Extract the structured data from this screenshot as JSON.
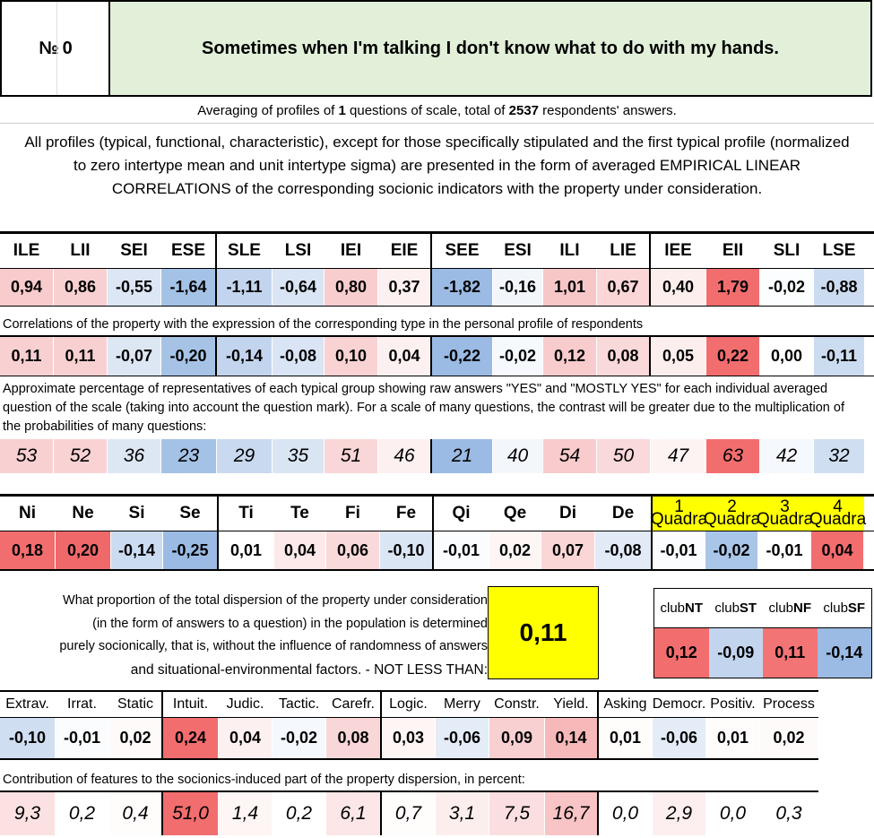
{
  "header": {
    "num_label": "№",
    "num_value": "0",
    "title": "Sometimes when I'm talking I don't know what to do with my hands."
  },
  "averaging": {
    "prefix": "Averaging of profiles of ",
    "questions": "1",
    "middle": " questions of scale, total of ",
    "respondents": "2537",
    "suffix": " respondents' answers."
  },
  "intro": "All profiles (typical, functional, characteristic), except for those specifically stipulated and the first typical profile (normalized to zero intertype mean and unit intertype sigma) are presented in the form of averaged EMPIRICAL LINEAR CORRELATIONS of the corresponding socionic indicators with the property under consideration.",
  "types": [
    "ILE",
    "LII",
    "SEI",
    "ESE",
    "SLE",
    "LSI",
    "IEI",
    "EIE",
    "SEE",
    "ESI",
    "ILI",
    "LIE",
    "IEE",
    "EII",
    "SLI",
    "LSE"
  ],
  "type_profile": [
    "0,94",
    "0,86",
    "-0,55",
    "-1,64",
    "-1,11",
    "-0,64",
    "0,80",
    "0,37",
    "-1,82",
    "-0,16",
    "1,01",
    "0,67",
    "0,40",
    "1,79",
    "-0,02",
    "-0,88"
  ],
  "type_profile_colors": [
    "#f8cbcc",
    "#f9d0d1",
    "#dce6f4",
    "#a4c2e6",
    "#c3d5ee",
    "#d9e4f4",
    "#f8cdce",
    "#fdf0f0",
    "#9bbbe4",
    "#f2f6fb",
    "#f7c6c7",
    "#fad6d7",
    "#fdeeee",
    "#f26d6e",
    "#fcfdff",
    "#ccdcf0"
  ],
  "note_correlations": "Correlations of the property with the expression of the corresponding type in the personal profile of respondents",
  "type_corr": [
    "0,11",
    "0,11",
    "-0,07",
    "-0,20",
    "-0,14",
    "-0,08",
    "0,10",
    "0,04",
    "-0,22",
    "-0,02",
    "0,12",
    "0,08",
    "0,05",
    "0,22",
    "0,00",
    "-0,11"
  ],
  "type_corr_colors": [
    "#f9d0d1",
    "#f9d0d1",
    "#dde7f4",
    "#a6c3e6",
    "#c3d5ee",
    "#d9e4f4",
    "#f9d2d3",
    "#fdf0f0",
    "#9bbbe4",
    "#f5f8fc",
    "#f8cbcc",
    "#fad9da",
    "#fdeeee",
    "#f26d6e",
    "#ffffff",
    "#ccdcf0"
  ],
  "note_percent": "Approximate percentage of representatives of each typical group showing raw answers \"YES\" and \"MOSTLY YES\" for each individual averaged question of the scale (taking into account the question mark). For a scale of many questions, the contrast will be greater due to the multiplication of the probabilities of many questions:",
  "type_pct": [
    "53",
    "52",
    "36",
    "23",
    "29",
    "35",
    "51",
    "46",
    "21",
    "40",
    "54",
    "50",
    "47",
    "63",
    "42",
    "32"
  ],
  "type_pct_colors": [
    "#f9d0d1",
    "#f9d3d4",
    "#dde7f4",
    "#a4c2e6",
    "#c9d9ef",
    "#dae5f4",
    "#f9d6d7",
    "#fdf0f0",
    "#9bbbe4",
    "#f3f7fb",
    "#f8cbcc",
    "#fad9da",
    "#fef3f3",
    "#f26d6e",
    "#f5f8fc",
    "#d0def1"
  ],
  "functions": [
    "Ni",
    "Ne",
    "Si",
    "Se",
    "Ti",
    "Te",
    "Fi",
    "Fe",
    "Qi",
    "Qe",
    "Di",
    "De"
  ],
  "quadras": [
    {
      "num": "1",
      "label": "Quadra"
    },
    {
      "num": "2",
      "label": "Quadra"
    },
    {
      "num": "3",
      "label": "Quadra"
    },
    {
      "num": "4",
      "label": "Quadra"
    }
  ],
  "func_vals": [
    "0,18",
    "0,20",
    "-0,14",
    "-0,25",
    "0,01",
    "0,04",
    "0,06",
    "-0,10",
    "-0,01",
    "0,02",
    "0,07",
    "-0,08",
    "-0,01",
    "-0,02",
    "-0,01",
    "0,04"
  ],
  "func_colors": [
    "#f26d6e",
    "#f0696a",
    "#ccdcf0",
    "#9bbbe4",
    "#ffffff",
    "#fde9e9",
    "#fad9da",
    "#dbe6f4",
    "#fafcfe",
    "#fef5f5",
    "#fad6d7",
    "#e1eaf6",
    "#fafcfe",
    "#a9c5e7",
    "#ffffff",
    "#f26d6e"
  ],
  "explanation": [
    "What proportion of the total dispersion of the property under consideration",
    "(in the form of answers to a question) in the population is determined",
    "purely socionically, that is, without the influence of randomness of answers",
    "and situational-environmental factors. - NOT LESS THAN:"
  ],
  "socionic_share": "0,11",
  "clubs": [
    {
      "prefix": "club",
      "bold": "NT",
      "value": "0,12",
      "color": "#f26d6e"
    },
    {
      "prefix": "club",
      "bold": "ST",
      "value": "-0,09",
      "color": "#c3d5ee"
    },
    {
      "prefix": "club",
      "bold": "NF",
      "value": "0,11",
      "color": "#f27475"
    },
    {
      "prefix": "club",
      "bold": "SF",
      "value": "-0,14",
      "color": "#9bbbe4"
    }
  ],
  "features": [
    "Extrav.",
    "Irrat.",
    "Static",
    "Intuit.",
    "Judic.",
    "Tactic.",
    "Carefr.",
    "Logic.",
    "Merry",
    "Constr.",
    "Yield.",
    "Asking",
    "Democr.",
    "Positiv.",
    "Process"
  ],
  "feature_vals": [
    "-0,10",
    "-0,01",
    "0,02",
    "0,24",
    "0,04",
    "-0,02",
    "0,08",
    "0,03",
    "-0,06",
    "0,09",
    "0,14",
    "0,01",
    "-0,06",
    "0,01",
    "0,02"
  ],
  "feature_colors": [
    "#d0def1",
    "#fafcfe",
    "#fefafa",
    "#f26d6e",
    "#fdf0f0",
    "#f5f8fc",
    "#f9d6d7",
    "#fef5f5",
    "#e4ecf7",
    "#f9d0d1",
    "#f6b8b9",
    "#fffcfc",
    "#e4ecf7",
    "#fffcfc",
    "#fefafa"
  ],
  "note_contribution": "Contribution of features to the sociоnics-induced part of the property dispersion, in percent:",
  "feature_pct": [
    "9,3",
    "0,2",
    "0,4",
    "51,0",
    "1,4",
    "0,2",
    "6,1",
    "0,7",
    "3,1",
    "7,5",
    "16,7",
    "0,0",
    "2,9",
    "0,0",
    "0,3"
  ],
  "feature_pct_colors": [
    "#fbe1e2",
    "#ffffff",
    "#fffcfc",
    "#f26d6e",
    "#fef5f5",
    "#ffffff",
    "#fce6e7",
    "#fffcfc",
    "#fdeeee",
    "#fbdfe0",
    "#f8c4c5",
    "#ffffff",
    "#fdefef",
    "#ffffff",
    "#ffffff"
  ]
}
